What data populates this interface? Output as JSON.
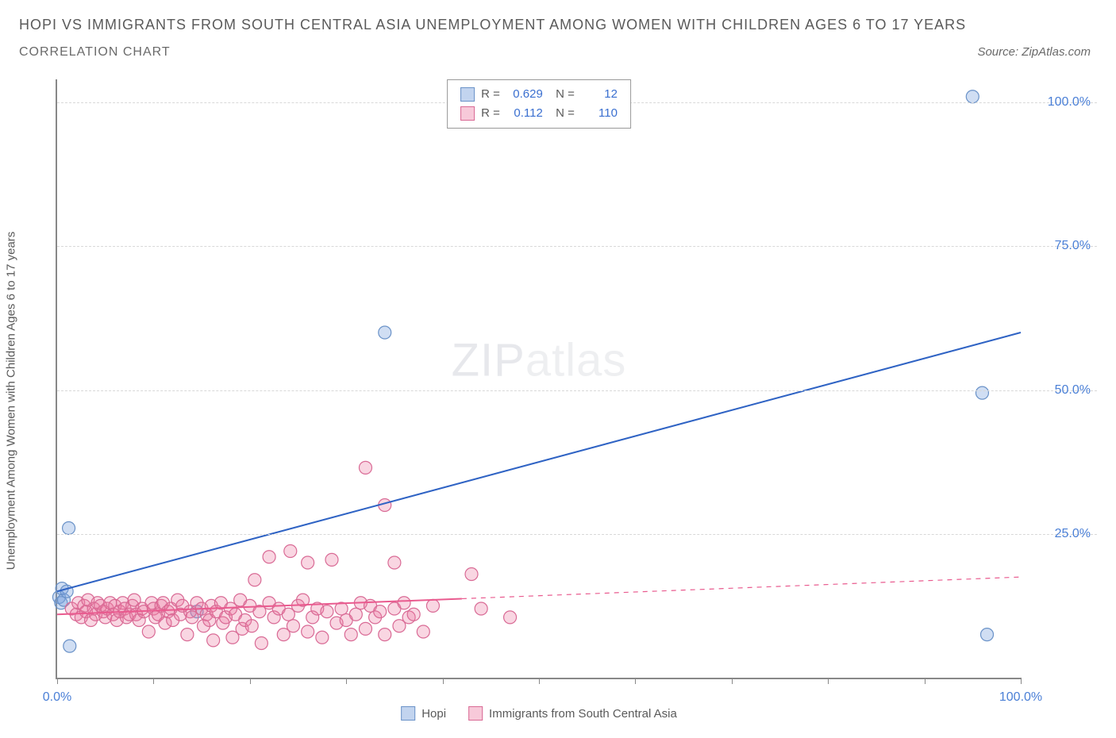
{
  "header": {
    "title": "HOPI VS IMMIGRANTS FROM SOUTH CENTRAL ASIA UNEMPLOYMENT AMONG WOMEN WITH CHILDREN AGES 6 TO 17 YEARS",
    "subtitle": "CORRELATION CHART",
    "source": "Source: ZipAtlas.com"
  },
  "watermark": {
    "bold": "ZIP",
    "thin": "atlas"
  },
  "chart": {
    "type": "scatter",
    "ylabel": "Unemployment Among Women with Children Ages 6 to 17 years",
    "xlim": [
      0,
      100
    ],
    "ylim": [
      0,
      104
    ],
    "xtick_positions": [
      0,
      10,
      20,
      30,
      40,
      50,
      60,
      70,
      80,
      90,
      100
    ],
    "xtick_labels": {
      "0": "0.0%",
      "100": "100.0%"
    },
    "ytick_positions": [
      25,
      50,
      75,
      100
    ],
    "ytick_labels": [
      "25.0%",
      "50.0%",
      "75.0%",
      "100.0%"
    ],
    "grid_color": "#d8d8d8",
    "axis_color": "#888888",
    "background_color": "#ffffff",
    "label_color": "#4a7fd6",
    "marker_radius": 8,
    "marker_stroke_width": 1.2,
    "trend_line_width": 2,
    "series": [
      {
        "name": "Hopi",
        "fill": "rgba(120,160,220,0.35)",
        "stroke": "#6a92c8",
        "line_color": "#2f63c4",
        "stats": {
          "R": "0.629",
          "N": "12"
        },
        "trend": {
          "x1": 0,
          "y1": 15,
          "x2": 100,
          "y2": 60,
          "dash_after_x": null
        },
        "points": [
          [
            0.2,
            14
          ],
          [
            0.4,
            13
          ],
          [
            0.5,
            15.5
          ],
          [
            0.7,
            13.5
          ],
          [
            1.0,
            15
          ],
          [
            1.2,
            26
          ],
          [
            1.3,
            5.5
          ],
          [
            14.5,
            11.5
          ],
          [
            34,
            60
          ],
          [
            95,
            101
          ],
          [
            96,
            49.5
          ],
          [
            96.5,
            7.5
          ]
        ]
      },
      {
        "name": "Immigrants from South Central Asia",
        "fill": "rgba(235,120,160,0.30)",
        "stroke": "#d96a95",
        "line_color": "#e95b8f",
        "stats": {
          "R": "0.112",
          "N": "110"
        },
        "trend": {
          "x1": 0,
          "y1": 11,
          "x2": 100,
          "y2": 17.5,
          "dash_after_x": 42
        },
        "points": [
          [
            1.5,
            12
          ],
          [
            2,
            11
          ],
          [
            2.2,
            13
          ],
          [
            2.5,
            10.5
          ],
          [
            2.8,
            12.5
          ],
          [
            3,
            11.5
          ],
          [
            3.2,
            13.5
          ],
          [
            3.5,
            10
          ],
          [
            3.8,
            12
          ],
          [
            4,
            11
          ],
          [
            4.2,
            13
          ],
          [
            4.5,
            12.5
          ],
          [
            4.8,
            11.5
          ],
          [
            5,
            10.5
          ],
          [
            5.2,
            12
          ],
          [
            5.5,
            13
          ],
          [
            5.8,
            11
          ],
          [
            6,
            12.5
          ],
          [
            6.2,
            10
          ],
          [
            6.5,
            11.5
          ],
          [
            6.8,
            13
          ],
          [
            7,
            12
          ],
          [
            7.2,
            10.5
          ],
          [
            7.5,
            11
          ],
          [
            7.8,
            12.5
          ],
          [
            8,
            13.5
          ],
          [
            8.2,
            11
          ],
          [
            8.5,
            10
          ],
          [
            8.8,
            12
          ],
          [
            9,
            11.5
          ],
          [
            9.5,
            8
          ],
          [
            9.8,
            13
          ],
          [
            10,
            12
          ],
          [
            10.2,
            10.5
          ],
          [
            10.5,
            11
          ],
          [
            10.8,
            12.5
          ],
          [
            11,
            13
          ],
          [
            11.2,
            9.5
          ],
          [
            11.5,
            11.5
          ],
          [
            11.8,
            12
          ],
          [
            12,
            10
          ],
          [
            12.5,
            13.5
          ],
          [
            12.8,
            11
          ],
          [
            13,
            12.5
          ],
          [
            13.5,
            7.5
          ],
          [
            13.8,
            11.5
          ],
          [
            14,
            10.5
          ],
          [
            14.5,
            13
          ],
          [
            15,
            12
          ],
          [
            15.2,
            9
          ],
          [
            15.5,
            11
          ],
          [
            15.8,
            10
          ],
          [
            16,
            12.5
          ],
          [
            16.2,
            6.5
          ],
          [
            16.5,
            11.5
          ],
          [
            17,
            13
          ],
          [
            17.2,
            9.5
          ],
          [
            17.5,
            10.5
          ],
          [
            18,
            12
          ],
          [
            18.2,
            7
          ],
          [
            18.5,
            11
          ],
          [
            19,
            13.5
          ],
          [
            19.2,
            8.5
          ],
          [
            19.5,
            10
          ],
          [
            20,
            12.5
          ],
          [
            20.2,
            9
          ],
          [
            20.5,
            17
          ],
          [
            21,
            11.5
          ],
          [
            21.2,
            6
          ],
          [
            22,
            13
          ],
          [
            22,
            21
          ],
          [
            22.5,
            10.5
          ],
          [
            23,
            12
          ],
          [
            23.5,
            7.5
          ],
          [
            24,
            11
          ],
          [
            24.2,
            22
          ],
          [
            24.5,
            9
          ],
          [
            25,
            12.5
          ],
          [
            25.5,
            13.5
          ],
          [
            26,
            8
          ],
          [
            26,
            20
          ],
          [
            26.5,
            10.5
          ],
          [
            27,
            12
          ],
          [
            27.5,
            7
          ],
          [
            28,
            11.5
          ],
          [
            28.5,
            20.5
          ],
          [
            29,
            9.5
          ],
          [
            29.5,
            12
          ],
          [
            30,
            10
          ],
          [
            30.5,
            7.5
          ],
          [
            31,
            11
          ],
          [
            31.5,
            13
          ],
          [
            32,
            36.5
          ],
          [
            32,
            8.5
          ],
          [
            32.5,
            12.5
          ],
          [
            33,
            10.5
          ],
          [
            33.5,
            11.5
          ],
          [
            34,
            7.5
          ],
          [
            34,
            30
          ],
          [
            35,
            12
          ],
          [
            35,
            20
          ],
          [
            35.5,
            9
          ],
          [
            36,
            13
          ],
          [
            36.5,
            10.5
          ],
          [
            37,
            11
          ],
          [
            38,
            8
          ],
          [
            39,
            12.5
          ],
          [
            43,
            18
          ],
          [
            44,
            12
          ],
          [
            47,
            10.5
          ]
        ]
      }
    ],
    "legend": {
      "swatch_border_blue": "#6a92c8",
      "swatch_fill_blue": "rgba(120,160,220,0.45)",
      "swatch_border_pink": "#d96a95",
      "swatch_fill_pink": "rgba(235,120,160,0.40)"
    }
  }
}
